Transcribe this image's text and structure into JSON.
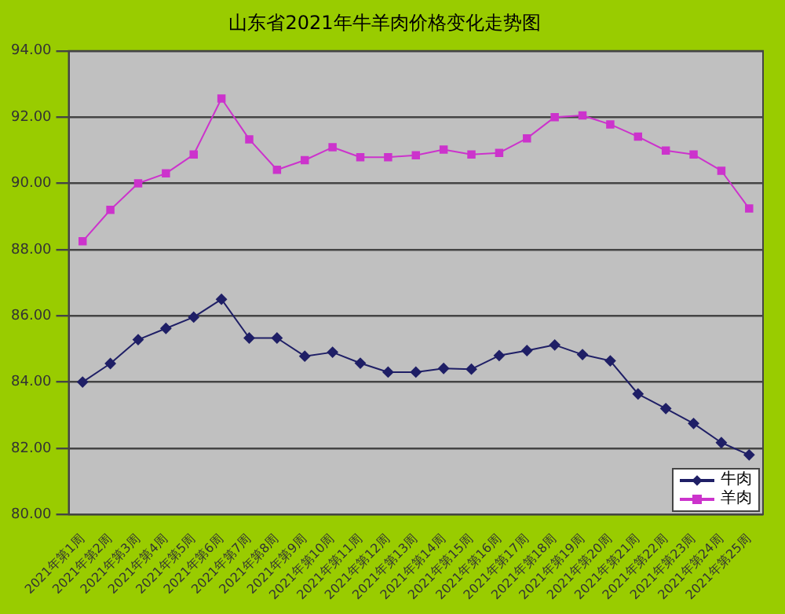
{
  "chart_data": {
    "type": "line",
    "title": "山东省2021年牛羊肉价格变化走势图",
    "categories": [
      "2021年第1周",
      "2021年第2周",
      "2021年第3周",
      "2021年第4周",
      "2021年第5周",
      "2021年第6周",
      "2021年第7周",
      "2021年第8周",
      "2021年第9周",
      "2021年第10周",
      "2021年第11周",
      "2021年第12周",
      "2021年第13周",
      "2021年第14周",
      "2021年第15周",
      "2021年第16周",
      "2021年第17周",
      "2021年第18周",
      "2021年第19周",
      "2021年第20周",
      "2021年第21周",
      "2021年第22周",
      "2021年第23周",
      "2021年第24周",
      "2021年第25周"
    ],
    "series": [
      {
        "name": "牛肉",
        "color": "#1f1f66",
        "marker": "diamond",
        "values": [
          84.0,
          84.56,
          85.28,
          85.62,
          85.96,
          86.5,
          85.33,
          85.33,
          84.78,
          84.9,
          84.57,
          84.3,
          84.3,
          84.41,
          84.39,
          84.8,
          84.95,
          85.12,
          84.83,
          84.64,
          83.64,
          83.2,
          82.75,
          82.17,
          81.8
        ]
      },
      {
        "name": "羊肉",
        "color": "#cc33cc",
        "marker": "square",
        "values": [
          88.25,
          89.2,
          90.0,
          90.3,
          90.87,
          92.56,
          91.33,
          90.41,
          90.7,
          91.09,
          90.79,
          90.79,
          90.85,
          91.02,
          90.87,
          90.92,
          91.36,
          92.0,
          92.05,
          91.78,
          91.41,
          90.99,
          90.87,
          90.38,
          89.24
        ]
      }
    ],
    "ylim": [
      80,
      94
    ],
    "yticks": [
      {
        "value": 80,
        "label": "80.00"
      },
      {
        "value": 82,
        "label": "82.00"
      },
      {
        "value": 84,
        "label": "84.00"
      },
      {
        "value": 86,
        "label": "86.00"
      },
      {
        "value": 88,
        "label": "88.00"
      },
      {
        "value": 90,
        "label": "90.00"
      },
      {
        "value": 92,
        "label": "92.00"
      },
      {
        "value": 94,
        "label": "94.00"
      }
    ],
    "grid": "y",
    "legend": "bottom right",
    "line_style": "solid"
  }
}
